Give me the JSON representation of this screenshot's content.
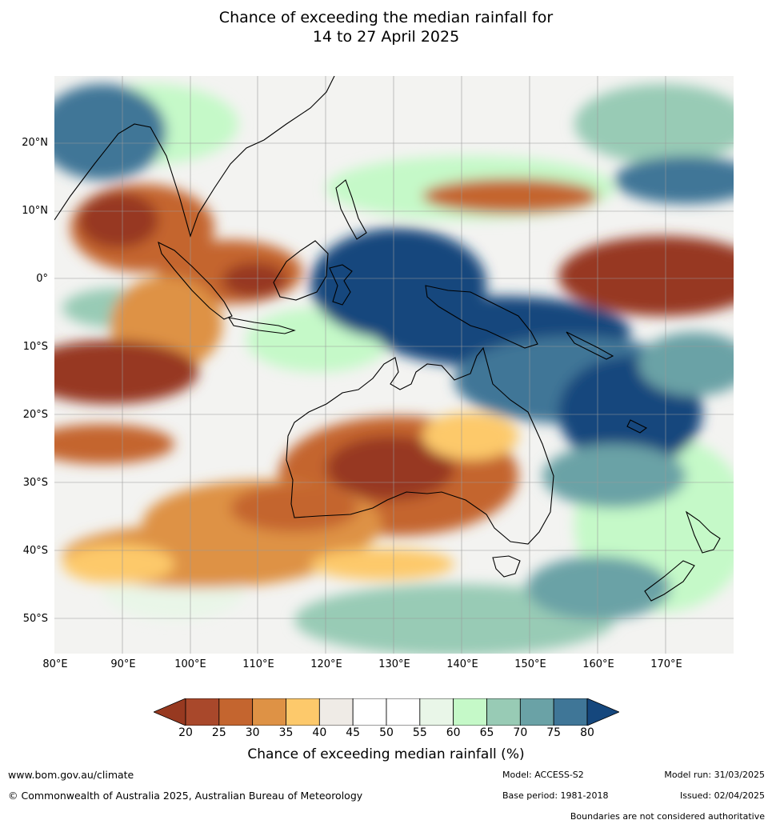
{
  "title_line1": "Chance of exceeding the median rainfall for",
  "title_line2": "14 to 27 April 2025",
  "lat_labels": [
    "20°N",
    "10°N",
    "0°",
    "10°S",
    "20°S",
    "30°S",
    "40°S",
    "50°S"
  ],
  "lon_labels": [
    "80°E",
    "90°E",
    "100°E",
    "110°E",
    "120°E",
    "130°E",
    "140°E",
    "150°E",
    "160°E",
    "170°E"
  ],
  "legend": {
    "ticks": [
      "20",
      "25",
      "30",
      "35",
      "40",
      "45",
      "50",
      "55",
      "60",
      "65",
      "70",
      "75",
      "80"
    ],
    "label": "Chance of exceeding median rainfall (%)",
    "colors": [
      "#973920",
      "#a9482b",
      "#c4652f",
      "#de9245",
      "#fdc96b",
      "#efebe6",
      "#ffffff",
      "#ffffff",
      "#e9f6e8",
      "#c5f9c8",
      "#98cbb5",
      "#6aa2a6",
      "#3f7697",
      "#15477d"
    ]
  },
  "footer": {
    "website": "www.bom.gov.au/climate",
    "copyright": "© Commonwealth of Australia 2025, Australian Bureau of Meteorology",
    "model": "Model: ACCESS-S2",
    "model_run": "Model run: 31/03/2025",
    "base_period": "Base period: 1981-2018",
    "issued": "Issued: 02/04/2025",
    "boundaries": "Boundaries are not considered authoritative"
  }
}
